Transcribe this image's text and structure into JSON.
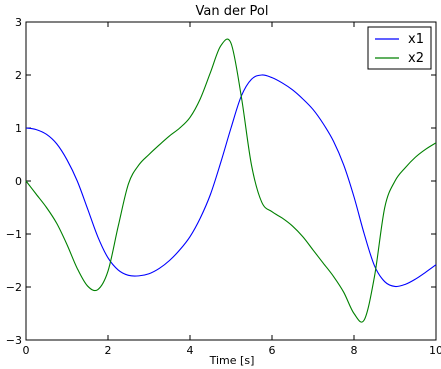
{
  "chart_data": {
    "type": "line",
    "title": "Van der Pol",
    "xlabel": "Time [s]",
    "ylabel": "",
    "xlim": [
      0,
      10
    ],
    "ylim": [
      -3,
      3
    ],
    "xticks": [
      "0",
      "2",
      "4",
      "6",
      "8",
      "10"
    ],
    "yticks": [
      "3",
      "2",
      "1",
      "0",
      "−1",
      "−2",
      "−3"
    ],
    "grid": false,
    "legend_position": "top-right",
    "series": [
      {
        "name": "x1",
        "color": "#0000ff",
        "x": [
          0,
          0.25,
          0.5,
          0.75,
          1.0,
          1.25,
          1.5,
          1.75,
          2.0,
          2.25,
          2.5,
          2.75,
          3.0,
          3.25,
          3.5,
          3.75,
          4.0,
          4.25,
          4.5,
          4.75,
          5.0,
          5.25,
          5.5,
          5.75,
          6.0,
          6.25,
          6.5,
          6.75,
          7.0,
          7.25,
          7.5,
          7.75,
          8.0,
          8.25,
          8.5,
          8.75,
          9.0,
          9.25,
          9.5,
          9.75,
          10.0
        ],
        "y": [
          1.0,
          0.97,
          0.88,
          0.7,
          0.4,
          0.0,
          -0.52,
          -1.05,
          -1.45,
          -1.68,
          -1.78,
          -1.79,
          -1.75,
          -1.65,
          -1.5,
          -1.3,
          -1.05,
          -0.7,
          -0.25,
          0.35,
          1.0,
          1.6,
          1.92,
          2.0,
          1.95,
          1.85,
          1.72,
          1.55,
          1.35,
          1.08,
          0.75,
          0.3,
          -0.3,
          -1.0,
          -1.6,
          -1.9,
          -1.99,
          -1.95,
          -1.85,
          -1.72,
          -1.58
        ]
      },
      {
        "name": "x2",
        "color": "#008000",
        "x": [
          0,
          0.25,
          0.5,
          0.75,
          1.0,
          1.25,
          1.5,
          1.75,
          2.0,
          2.25,
          2.5,
          2.75,
          3.0,
          3.25,
          3.5,
          3.75,
          4.0,
          4.25,
          4.5,
          4.75,
          5.0,
          5.25,
          5.5,
          5.75,
          6.0,
          6.25,
          6.5,
          6.75,
          7.0,
          7.25,
          7.5,
          7.75,
          8.0,
          8.25,
          8.5,
          8.75,
          9.0,
          9.25,
          9.5,
          9.75,
          10.0
        ],
        "y": [
          0.0,
          -0.25,
          -0.5,
          -0.8,
          -1.2,
          -1.65,
          -1.98,
          -2.05,
          -1.7,
          -0.85,
          -0.05,
          0.3,
          0.5,
          0.68,
          0.85,
          1.0,
          1.2,
          1.55,
          2.05,
          2.55,
          2.6,
          1.6,
          0.3,
          -0.4,
          -0.58,
          -0.7,
          -0.85,
          -1.05,
          -1.3,
          -1.55,
          -1.8,
          -2.1,
          -2.5,
          -2.62,
          -1.8,
          -0.5,
          0.0,
          0.25,
          0.45,
          0.6,
          0.72
        ]
      }
    ]
  }
}
